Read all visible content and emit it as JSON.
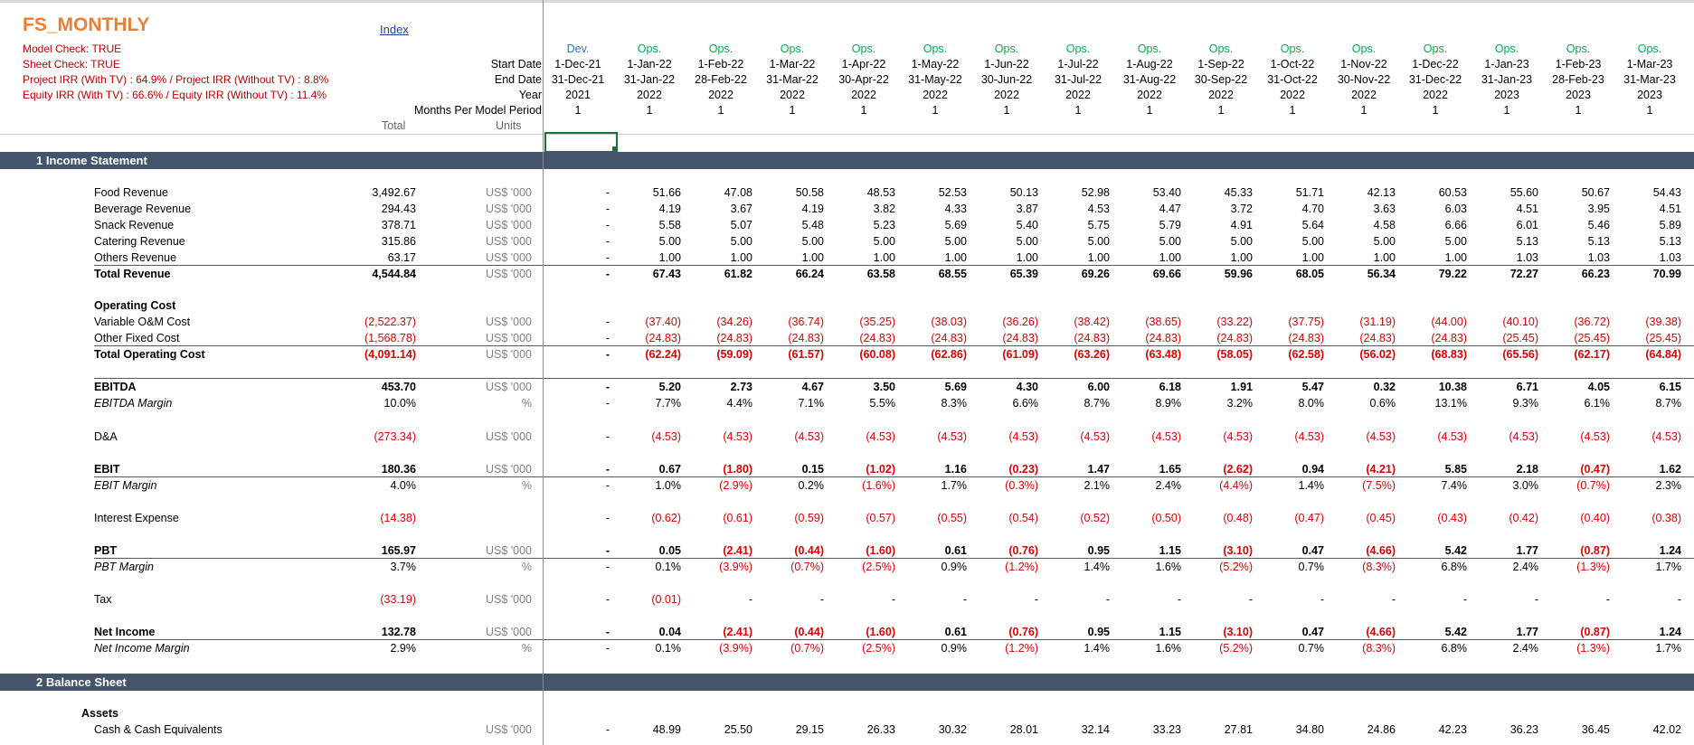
{
  "sheet": {
    "title": "FS_MONTHLY",
    "title_color": "#ed7d31",
    "info_lines": [
      "Model Check: TRUE",
      "Sheet Check: TRUE",
      "Project IRR  (With TV) : 64.9%  / Project IRR (Without TV) : 8.8%",
      "Equity IRR  (With TV) : 66.6%  / Equity IRR (Without TV) : 11.4%"
    ],
    "info_color": "#c00000",
    "index_link": "Index",
    "link_color": "#1f3f9f"
  },
  "header_labels": {
    "start_date": "Start Date",
    "end_date": "End Date",
    "year": "Year",
    "months": "Months Per Model Period",
    "total": "Total",
    "units": "Units"
  },
  "columns": [
    {
      "phase": "Dev.",
      "start": "1-Dec-21",
      "end": "31-Dec-21",
      "year": "2021",
      "months": "1"
    },
    {
      "phase": "Ops.",
      "start": "1-Jan-22",
      "end": "31-Jan-22",
      "year": "2022",
      "months": "1"
    },
    {
      "phase": "Ops.",
      "start": "1-Feb-22",
      "end": "28-Feb-22",
      "year": "2022",
      "months": "1"
    },
    {
      "phase": "Ops.",
      "start": "1-Mar-22",
      "end": "31-Mar-22",
      "year": "2022",
      "months": "1"
    },
    {
      "phase": "Ops.",
      "start": "1-Apr-22",
      "end": "30-Apr-22",
      "year": "2022",
      "months": "1"
    },
    {
      "phase": "Ops.",
      "start": "1-May-22",
      "end": "31-May-22",
      "year": "2022",
      "months": "1"
    },
    {
      "phase": "Ops.",
      "start": "1-Jun-22",
      "end": "30-Jun-22",
      "year": "2022",
      "months": "1"
    },
    {
      "phase": "Ops.",
      "start": "1-Jul-22",
      "end": "31-Jul-22",
      "year": "2022",
      "months": "1"
    },
    {
      "phase": "Ops.",
      "start": "1-Aug-22",
      "end": "31-Aug-22",
      "year": "2022",
      "months": "1"
    },
    {
      "phase": "Ops.",
      "start": "1-Sep-22",
      "end": "30-Sep-22",
      "year": "2022",
      "months": "1"
    },
    {
      "phase": "Ops.",
      "start": "1-Oct-22",
      "end": "31-Oct-22",
      "year": "2022",
      "months": "1"
    },
    {
      "phase": "Ops.",
      "start": "1-Nov-22",
      "end": "30-Nov-22",
      "year": "2022",
      "months": "1"
    },
    {
      "phase": "Ops.",
      "start": "1-Dec-22",
      "end": "31-Dec-22",
      "year": "2022",
      "months": "1"
    },
    {
      "phase": "Ops.",
      "start": "1-Jan-23",
      "end": "31-Jan-23",
      "year": "2023",
      "months": "1"
    },
    {
      "phase": "Ops.",
      "start": "1-Feb-23",
      "end": "28-Feb-23",
      "year": "2023",
      "months": "1"
    },
    {
      "phase": "Ops.",
      "start": "1-Mar-23",
      "end": "31-Mar-23",
      "year": "2023",
      "months": "1"
    }
  ],
  "phase_colors": {
    "Dev.": "#2e75b6",
    "Ops.": "#00b050"
  },
  "sections": [
    {
      "num": "1",
      "title": "Income Statement"
    },
    {
      "num": "2",
      "title": "Balance Sheet"
    }
  ],
  "rows": [
    {
      "label": "Food Revenue",
      "total": "3,492.67",
      "units": "US$ '000",
      "vals": [
        "-",
        "51.66",
        "47.08",
        "50.58",
        "48.53",
        "52.53",
        "50.13",
        "52.98",
        "53.40",
        "45.33",
        "51.71",
        "42.13",
        "60.53",
        "55.60",
        "50.67",
        "54.43"
      ]
    },
    {
      "label": "Beverage Revenue",
      "total": "294.43",
      "units": "US$ '000",
      "vals": [
        "-",
        "4.19",
        "3.67",
        "4.19",
        "3.82",
        "4.33",
        "3.87",
        "4.53",
        "4.47",
        "3.72",
        "4.70",
        "3.63",
        "6.03",
        "4.51",
        "3.95",
        "4.51"
      ]
    },
    {
      "label": "Snack Revenue",
      "total": "378.71",
      "units": "US$ '000",
      "vals": [
        "-",
        "5.58",
        "5.07",
        "5.48",
        "5.23",
        "5.69",
        "5.40",
        "5.75",
        "5.79",
        "4.91",
        "5.64",
        "4.58",
        "6.66",
        "6.01",
        "5.46",
        "5.89"
      ]
    },
    {
      "label": "Catering Revenue",
      "total": "315.86",
      "units": "US$ '000",
      "vals": [
        "-",
        "5.00",
        "5.00",
        "5.00",
        "5.00",
        "5.00",
        "5.00",
        "5.00",
        "5.00",
        "5.00",
        "5.00",
        "5.00",
        "5.00",
        "5.13",
        "5.13",
        "5.13"
      ]
    },
    {
      "label": "Others Revenue",
      "total": "63.17",
      "units": "US$ '000",
      "vals": [
        "-",
        "1.00",
        "1.00",
        "1.00",
        "1.00",
        "1.00",
        "1.00",
        "1.00",
        "1.00",
        "1.00",
        "1.00",
        "1.00",
        "1.00",
        "1.03",
        "1.03",
        "1.03"
      ]
    },
    {
      "label": "Total Revenue",
      "total": "4,544.84",
      "units": "US$ '000",
      "style": "bold",
      "vals": [
        "-",
        "67.43",
        "61.82",
        "66.24",
        "63.58",
        "68.55",
        "65.39",
        "69.26",
        "69.66",
        "59.96",
        "68.05",
        "56.34",
        "79.22",
        "72.27",
        "66.23",
        "70.99"
      ]
    },
    {
      "label": "Operating Cost",
      "style": "bold",
      "heading": true
    },
    {
      "label": "Variable O&M Cost",
      "total": "(2,522.37)",
      "units": "US$ '000",
      "vals": [
        "-",
        "(37.40)",
        "(34.26)",
        "(36.74)",
        "(35.25)",
        "(38.03)",
        "(36.26)",
        "(38.42)",
        "(38.65)",
        "(33.22)",
        "(37.75)",
        "(31.19)",
        "(44.00)",
        "(40.10)",
        "(36.72)",
        "(39.38)"
      ]
    },
    {
      "label": "Other Fixed Cost",
      "total": "(1,568.78)",
      "units": "US$ '000",
      "vals": [
        "-",
        "(24.83)",
        "(24.83)",
        "(24.83)",
        "(24.83)",
        "(24.83)",
        "(24.83)",
        "(24.83)",
        "(24.83)",
        "(24.83)",
        "(24.83)",
        "(24.83)",
        "(24.83)",
        "(25.45)",
        "(25.45)",
        "(25.45)"
      ]
    },
    {
      "label": "Total Operating Cost",
      "total": "(4,091.14)",
      "units": "US$ '000",
      "style": "bold",
      "vals": [
        "-",
        "(62.24)",
        "(59.09)",
        "(61.57)",
        "(60.08)",
        "(62.86)",
        "(61.09)",
        "(63.26)",
        "(63.48)",
        "(58.05)",
        "(62.58)",
        "(56.02)",
        "(68.83)",
        "(65.56)",
        "(62.17)",
        "(64.84)"
      ]
    },
    {
      "label": "EBITDA",
      "total": "453.70",
      "units": "US$ '000",
      "style": "bold",
      "vals": [
        "-",
        "5.20",
        "2.73",
        "4.67",
        "3.50",
        "5.69",
        "4.30",
        "6.00",
        "6.18",
        "1.91",
        "5.47",
        "0.32",
        "10.38",
        "6.71",
        "4.05",
        "6.15"
      ]
    },
    {
      "label": "EBITDA Margin",
      "total": "10.0%",
      "units": "%",
      "style": "italic",
      "vals": [
        "-",
        "7.7%",
        "4.4%",
        "7.1%",
        "5.5%",
        "8.3%",
        "6.6%",
        "8.7%",
        "8.9%",
        "3.2%",
        "8.0%",
        "0.6%",
        "13.1%",
        "9.3%",
        "6.1%",
        "8.7%"
      ]
    },
    {
      "label": "D&A",
      "total": "(273.34)",
      "units": "US$ '000",
      "vals": [
        "-",
        "(4.53)",
        "(4.53)",
        "(4.53)",
        "(4.53)",
        "(4.53)",
        "(4.53)",
        "(4.53)",
        "(4.53)",
        "(4.53)",
        "(4.53)",
        "(4.53)",
        "(4.53)",
        "(4.53)",
        "(4.53)",
        "(4.53)"
      ]
    },
    {
      "label": "EBIT",
      "total": "180.36",
      "units": "US$ '000",
      "style": "bold",
      "vals": [
        "-",
        "0.67",
        "(1.80)",
        "0.15",
        "(1.02)",
        "1.16",
        "(0.23)",
        "1.47",
        "1.65",
        "(2.62)",
        "0.94",
        "(4.21)",
        "5.85",
        "2.18",
        "(0.47)",
        "1.62"
      ]
    },
    {
      "label": "EBIT Margin",
      "total": "4.0%",
      "units": "%",
      "style": "italic",
      "vals": [
        "-",
        "1.0%",
        "(2.9%)",
        "0.2%",
        "(1.6%)",
        "1.7%",
        "(0.3%)",
        "2.1%",
        "2.4%",
        "(4.4%)",
        "1.4%",
        "(7.5%)",
        "7.4%",
        "3.0%",
        "(0.7%)",
        "2.3%"
      ]
    },
    {
      "label": "Interest Expense",
      "total": "(14.38)",
      "units": "",
      "vals": [
        "-",
        "(0.62)",
        "(0.61)",
        "(0.59)",
        "(0.57)",
        "(0.55)",
        "(0.54)",
        "(0.52)",
        "(0.50)",
        "(0.48)",
        "(0.47)",
        "(0.45)",
        "(0.43)",
        "(0.42)",
        "(0.40)",
        "(0.38)"
      ]
    },
    {
      "label": "PBT",
      "total": "165.97",
      "units": "US$ '000",
      "style": "bold",
      "vals": [
        "-",
        "0.05",
        "(2.41)",
        "(0.44)",
        "(1.60)",
        "0.61",
        "(0.76)",
        "0.95",
        "1.15",
        "(3.10)",
        "0.47",
        "(4.66)",
        "5.42",
        "1.77",
        "(0.87)",
        "1.24"
      ]
    },
    {
      "label": "PBT Margin",
      "total": "3.7%",
      "units": "%",
      "style": "italic",
      "vals": [
        "-",
        "0.1%",
        "(3.9%)",
        "(0.7%)",
        "(2.5%)",
        "0.9%",
        "(1.2%)",
        "1.4%",
        "1.6%",
        "(5.2%)",
        "0.7%",
        "(8.3%)",
        "6.8%",
        "2.4%",
        "(1.3%)",
        "1.7%"
      ]
    },
    {
      "label": "Tax",
      "total": "(33.19)",
      "units": "US$ '000",
      "vals": [
        "-",
        "(0.01)",
        "-",
        "-",
        "-",
        "-",
        "-",
        "-",
        "-",
        "-",
        "-",
        "-",
        "-",
        "-",
        "-",
        "-"
      ]
    },
    {
      "label": "Net Income",
      "total": "132.78",
      "units": "US$ '000",
      "style": "bold",
      "vals": [
        "-",
        "0.04",
        "(2.41)",
        "(0.44)",
        "(1.60)",
        "0.61",
        "(0.76)",
        "0.95",
        "1.15",
        "(3.10)",
        "0.47",
        "(4.66)",
        "5.42",
        "1.77",
        "(0.87)",
        "1.24"
      ]
    },
    {
      "label": "Net Income Margin",
      "total": "2.9%",
      "units": "%",
      "style": "italic",
      "vals": [
        "-",
        "0.1%",
        "(3.9%)",
        "(0.7%)",
        "(2.5%)",
        "0.9%",
        "(1.2%)",
        "1.4%",
        "1.6%",
        "(5.2%)",
        "0.7%",
        "(8.3%)",
        "6.8%",
        "2.4%",
        "(1.3%)",
        "1.7%"
      ]
    },
    {
      "label": "Assets",
      "style": "bold",
      "heading": true,
      "sub": true
    },
    {
      "label": "Cash & Cash Equivalents",
      "total": "",
      "units": "US$ '000",
      "vals": [
        "-",
        "48.99",
        "25.50",
        "29.15",
        "26.33",
        "30.32",
        "28.01",
        "32.14",
        "33.23",
        "27.81",
        "34.80",
        "24.86",
        "42.23",
        "36.23",
        "36.45",
        "42.02"
      ]
    }
  ],
  "colors": {
    "negative": "#e00000",
    "section_bg": "#44546a",
    "units_text": "#808080",
    "selection": "#1e6e3a"
  }
}
